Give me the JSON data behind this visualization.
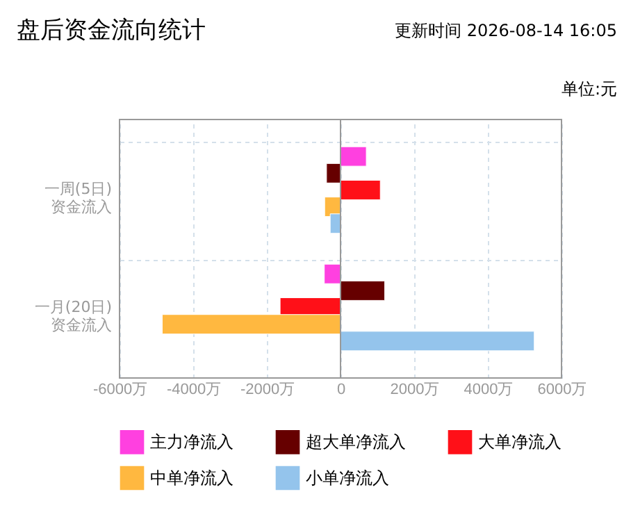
{
  "chart_data": {
    "type": "bar",
    "orientation": "horizontal",
    "title": "盘后资金流向统计",
    "annotations": [
      "更新时间 2026-08-14 16:05",
      "单位:元"
    ],
    "categories": [
      "一周(5日)\n资金流入",
      "一月(20日)\n资金流入"
    ],
    "series": [
      {
        "name": "主力净流入",
        "color": "#ff40e0",
        "values": [
          700,
          -440
        ]
      },
      {
        "name": "超大单净流入",
        "color": "#660000",
        "values": [
          -380,
          1200
        ]
      },
      {
        "name": "大单净流入",
        "color": "#ff1018",
        "values": [
          1080,
          -1640
        ]
      },
      {
        "name": "中单净流入",
        "color": "#ffb840",
        "values": [
          -430,
          -4840
        ]
      },
      {
        "name": "小单净流入",
        "color": "#94c4ec",
        "values": [
          -280,
          5260
        ]
      }
    ],
    "xlim": [
      -6000,
      6000
    ],
    "xticks": [
      {
        "value": -6000,
        "label": "-6000万"
      },
      {
        "value": -4000,
        "label": "-4000万"
      },
      {
        "value": -2000,
        "label": "-2000万"
      },
      0,
      {
        "value": 2000,
        "label": "2000万"
      },
      {
        "value": 4000,
        "label": "4000万"
      },
      {
        "value": 6000,
        "label": "6000万"
      }
    ],
    "grid": true,
    "legend": "bottom"
  }
}
